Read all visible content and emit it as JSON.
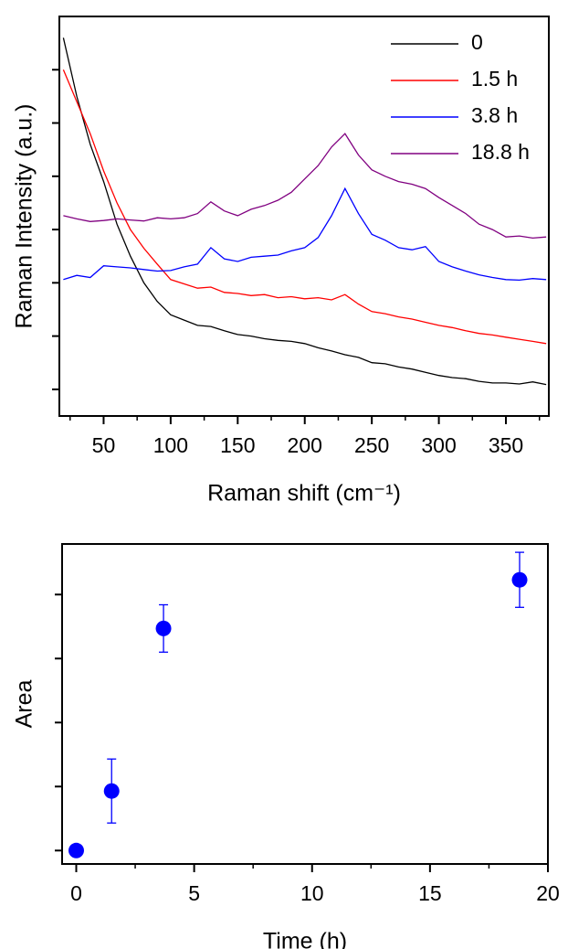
{
  "chart_data": [
    {
      "type": "line",
      "xlabel": "Raman shift (cm⁻¹)",
      "ylabel": "Raman Intensity (a.u.)",
      "xlim": [
        17,
        382
      ],
      "ylim": [
        0.5,
        8
      ],
      "xticks": [
        50,
        100,
        150,
        200,
        250,
        300,
        350
      ],
      "xminorticks": [
        25,
        75,
        125,
        175,
        225,
        275,
        325,
        375
      ],
      "yticks": [
        1,
        2,
        3,
        4,
        5,
        6,
        7
      ],
      "ytick_labels": false,
      "legend": "upper right",
      "x": [
        20,
        30,
        40,
        50,
        60,
        70,
        80,
        90,
        100,
        110,
        120,
        130,
        140,
        150,
        160,
        170,
        180,
        190,
        200,
        210,
        220,
        230,
        240,
        250,
        260,
        270,
        280,
        290,
        300,
        310,
        320,
        330,
        340,
        350,
        360,
        370,
        380
      ],
      "series": [
        {
          "name": "0",
          "color": "#000000",
          "values": [
            7.6,
            6.5,
            5.6,
            4.9,
            4.1,
            3.5,
            3.0,
            2.65,
            2.4,
            2.3,
            2.2,
            2.18,
            2.1,
            2.03,
            2.0,
            1.95,
            1.92,
            1.9,
            1.86,
            1.78,
            1.72,
            1.65,
            1.6,
            1.5,
            1.48,
            1.42,
            1.38,
            1.32,
            1.26,
            1.22,
            1.2,
            1.15,
            1.12,
            1.12,
            1.1,
            1.14,
            1.09
          ]
        },
        {
          "name": "1.5 h",
          "color": "#ff0000",
          "values": [
            7.0,
            6.4,
            5.8,
            5.1,
            4.5,
            4.0,
            3.65,
            3.35,
            3.06,
            2.98,
            2.9,
            2.92,
            2.82,
            2.8,
            2.76,
            2.78,
            2.72,
            2.74,
            2.7,
            2.72,
            2.68,
            2.78,
            2.6,
            2.46,
            2.42,
            2.36,
            2.32,
            2.26,
            2.2,
            2.16,
            2.1,
            2.05,
            2.02,
            1.98,
            1.94,
            1.9,
            1.86
          ]
        },
        {
          "name": "3.8 h",
          "color": "#0000ff",
          "values": [
            3.06,
            3.14,
            3.1,
            3.32,
            3.3,
            3.28,
            3.25,
            3.22,
            3.23,
            3.3,
            3.35,
            3.66,
            3.45,
            3.4,
            3.48,
            3.5,
            3.52,
            3.6,
            3.66,
            3.85,
            4.26,
            4.77,
            4.3,
            3.91,
            3.8,
            3.66,
            3.62,
            3.68,
            3.4,
            3.3,
            3.22,
            3.15,
            3.1,
            3.06,
            3.05,
            3.08,
            3.06
          ]
        },
        {
          "name": "18.8 h",
          "color": "#800080",
          "values": [
            4.26,
            4.2,
            4.15,
            4.17,
            4.2,
            4.18,
            4.16,
            4.22,
            4.2,
            4.22,
            4.3,
            4.52,
            4.35,
            4.26,
            4.38,
            4.45,
            4.55,
            4.7,
            4.95,
            5.2,
            5.55,
            5.8,
            5.4,
            5.12,
            5.0,
            4.9,
            4.85,
            4.77,
            4.6,
            4.45,
            4.3,
            4.1,
            4.0,
            3.86,
            3.88,
            3.84,
            3.86
          ]
        }
      ]
    },
    {
      "type": "scatter",
      "xlabel": "Time (h)",
      "ylabel": "Area",
      "xlim": [
        -0.6,
        20
      ],
      "ylim": [
        -0.21,
        4.79
      ],
      "xticks": [
        0,
        5,
        10,
        15,
        20
      ],
      "xminorticks": [
        2.5,
        7.5,
        12.5,
        17.5
      ],
      "yticks": [
        0,
        1,
        2,
        3,
        4
      ],
      "ytick_labels": false,
      "series": [
        {
          "color": "#0000ff",
          "x": [
            0,
            1.5,
            3.7,
            18.8
          ],
          "values": [
            0,
            0.93,
            3.47,
            4.23
          ],
          "errors": [
            0,
            0.5,
            0.37,
            0.43
          ]
        }
      ]
    }
  ]
}
